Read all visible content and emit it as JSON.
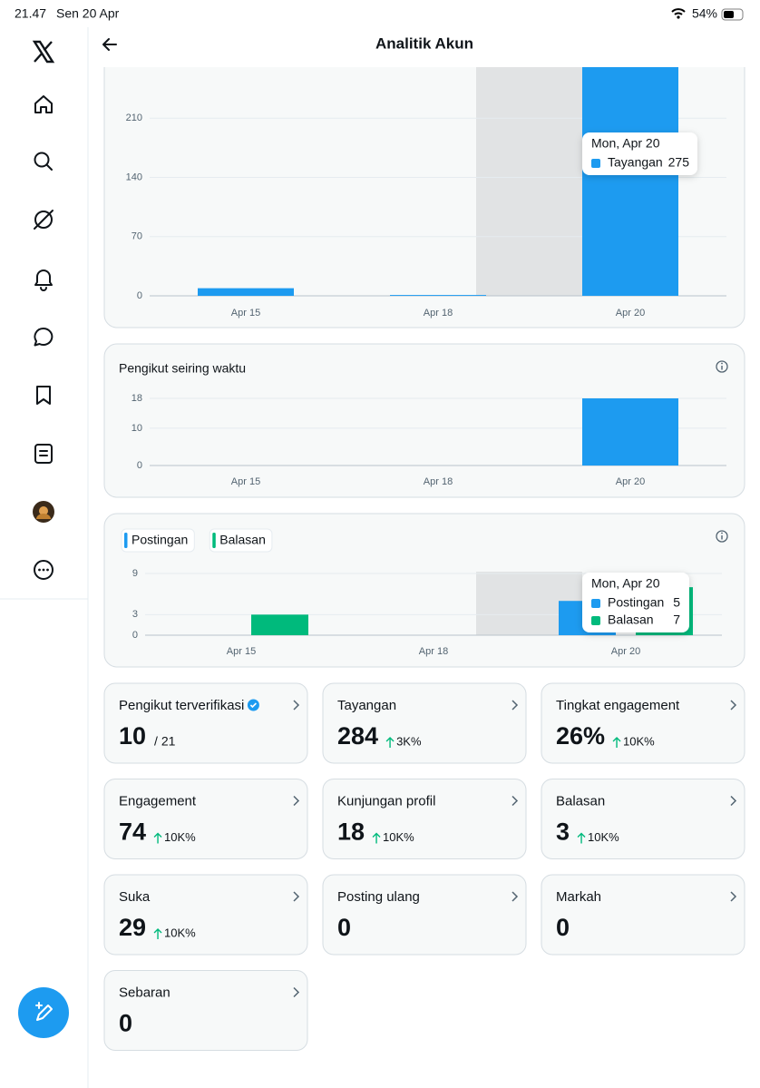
{
  "status_bar": {
    "time": "21.47",
    "date": "Sen 20 Apr",
    "battery": "54%"
  },
  "header": {
    "title": "Analitik Akun"
  },
  "chart_data": [
    {
      "type": "bar",
      "categories": [
        "Apr 15",
        "Apr 18",
        "Apr 20"
      ],
      "series": [
        {
          "name": "Tayangan",
          "color": "#1d9bf0",
          "values": [
            9,
            1,
            275
          ]
        }
      ],
      "ylim": [
        0,
        280
      ],
      "yticks": [
        0,
        70,
        140,
        210
      ],
      "grid": true,
      "tooltip": "Mon, Apr 20"
    },
    {
      "type": "bar",
      "title": "Pengikut seiring waktu",
      "categories": [
        "Apr 15",
        "Apr 18",
        "Apr 20"
      ],
      "values": [
        0,
        0,
        18
      ],
      "color": "#1d9bf0",
      "ylim": [
        0,
        18
      ],
      "yticks": [
        0,
        10,
        18
      ],
      "grid": true
    },
    {
      "type": "grouped-bar",
      "categories": [
        "Apr 15",
        "Apr 18",
        "Apr 20"
      ],
      "series": [
        {
          "name": "Postingan",
          "color": "#1d9bf0",
          "values": [
            0,
            0,
            5
          ]
        },
        {
          "name": "Balasan",
          "color": "#00ba7c",
          "values": [
            3,
            0,
            7
          ]
        }
      ],
      "ylim": [
        0,
        9
      ],
      "yticks": [
        0,
        3,
        9
      ],
      "grid": true,
      "legend": "top-left",
      "tooltip": "Mon, Apr 20"
    }
  ],
  "cards": [
    {
      "title": "Pengikut terverifikasi",
      "value": "10",
      "suffix": "/ 21"
    },
    {
      "title": "Tayangan",
      "value": "284",
      "change": "3K%"
    },
    {
      "title": "Tingkat engagement",
      "value": "26%",
      "change": "10K%"
    },
    {
      "title": "Engagement",
      "value": "74",
      "change": "10K%"
    },
    {
      "title": "Kunjungan profil",
      "value": "18",
      "change": "10K%"
    },
    {
      "title": "Balasan",
      "value": "3",
      "change": "10K%"
    },
    {
      "title": "Suka",
      "value": "29",
      "change": "10K%"
    },
    {
      "title": "Posting ulang",
      "value": "0"
    },
    {
      "title": "Markah",
      "value": "0"
    },
    {
      "title": "Sebaran",
      "value": "0"
    }
  ]
}
